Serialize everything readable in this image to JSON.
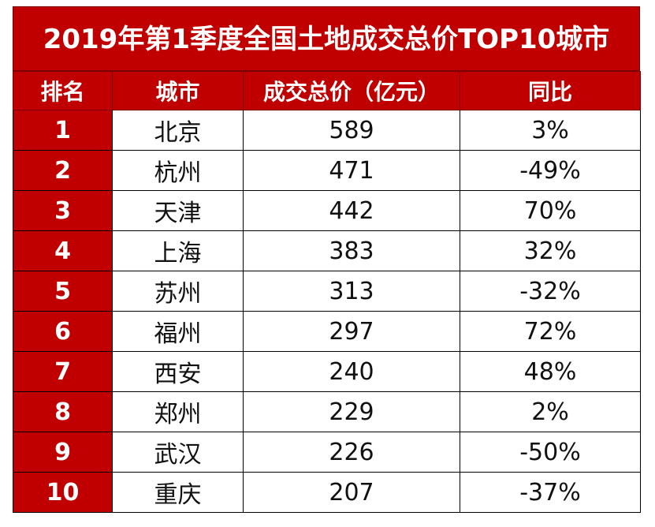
{
  "chart_data": {
    "type": "table",
    "title": "2019年第1季度全国土地成交总价TOP10城市",
    "columns": [
      "排名",
      "城市",
      "成交总价（亿元）",
      "同比"
    ],
    "rows": [
      [
        "1",
        "北京",
        "589",
        "3%"
      ],
      [
        "2",
        "杭州",
        "471",
        "-49%"
      ],
      [
        "3",
        "天津",
        "442",
        "70%"
      ],
      [
        "4",
        "上海",
        "383",
        "32%"
      ],
      [
        "5",
        "苏州",
        "313",
        "-32%"
      ],
      [
        "6",
        "福州",
        "297",
        "72%"
      ],
      [
        "7",
        "西安",
        "240",
        "48%"
      ],
      [
        "8",
        "郑州",
        "229",
        "2%"
      ],
      [
        "9",
        "武汉",
        "226",
        "-50%"
      ],
      [
        "10",
        "重庆",
        "207",
        "-37%"
      ]
    ],
    "colors": {
      "header_bg": "#c00000",
      "header_text": "#ffffff",
      "border": "#000000"
    }
  }
}
